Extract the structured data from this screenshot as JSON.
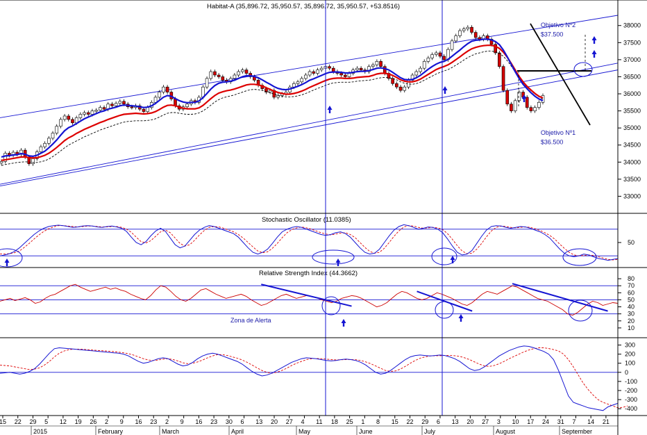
{
  "chart_data": {
    "type": "stock-chart",
    "title": "Habitat-A (35,896.72, 35,950.57, 35,896.72, 35,950.57, +53.8516)",
    "colors": {
      "price_up": "#ffffff",
      "price_down": "#d40000",
      "ma_fast": "#1414d2",
      "ma_slow": "#dd0000",
      "ma_dashed": "#000000",
      "frame": "#000000",
      "guide": "#1414d2",
      "oscillator": "#1414d2",
      "signal": "#dd0000",
      "rsi": "#cc0000"
    },
    "price_panel": {
      "y_ticks": [
        33000,
        33500,
        34000,
        34500,
        35000,
        35500,
        36000,
        36500,
        37000,
        37500,
        38000
      ],
      "ylim": [
        32500,
        38300
      ],
      "x_range": [
        0,
        182
      ],
      "closes": [
        34020,
        34260,
        34200,
        34290,
        34230,
        34350,
        34150,
        33950,
        34100,
        34300,
        34450,
        34550,
        34700,
        34850,
        35050,
        35250,
        35350,
        35250,
        35150,
        35300,
        35400,
        35450,
        35400,
        35500,
        35520,
        35600,
        35550,
        35700,
        35650,
        35720,
        35780,
        35700,
        35620,
        35600,
        35650,
        35550,
        35480,
        35600,
        35750,
        35900,
        36050,
        36200,
        36050,
        35850,
        35650,
        35550,
        35620,
        35700,
        35800,
        35750,
        35900,
        36200,
        36450,
        36650,
        36550,
        36500,
        36400,
        36350,
        36450,
        36550,
        36650,
        36700,
        36600,
        36500,
        36400,
        36250,
        36150,
        36050,
        36100,
        35900,
        35950,
        36000,
        36050,
        36200,
        36300,
        36350,
        36450,
        36550,
        36650,
        36600,
        36700,
        36750,
        36800,
        36750,
        36650,
        36600,
        36550,
        36500,
        36600,
        36700,
        36750,
        36700,
        36650,
        36800,
        36850,
        36950,
        36800,
        36600,
        36450,
        36300,
        36200,
        36100,
        36200,
        36400,
        36550,
        36650,
        36750,
        36950,
        37050,
        37150,
        37200,
        37100,
        37000,
        37300,
        37550,
        37700,
        37850,
        37900,
        37950,
        37800,
        37650,
        37600,
        37700,
        37600,
        37450,
        37200,
        36800,
        36100,
        35700,
        35500,
        35800,
        36050,
        35900,
        35600,
        35500,
        35600,
        35750,
        35950
      ],
      "ma_fast": [
        34150,
        34180,
        34190,
        34210,
        34220,
        34250,
        34230,
        34180,
        34170,
        34200,
        34260,
        34320,
        34420,
        34530,
        34650,
        34790,
        34920,
        35010,
        35060,
        35130,
        35200,
        35270,
        35320,
        35370,
        35420,
        35470,
        35500,
        35550,
        35580,
        35610,
        35650,
        35670,
        35660,
        35650,
        35640,
        35620,
        35600,
        35610,
        35650,
        35720,
        35810,
        35900,
        35950,
        35930,
        35860,
        35800,
        35760,
        35740,
        35750,
        35750,
        35790,
        35890,
        36010,
        36140,
        36240,
        36310,
        36340,
        36350,
        36370,
        36400,
        36450,
        36500,
        36530,
        36530,
        36510,
        36470,
        36410,
        36340,
        36280,
        36210,
        36160,
        36130,
        36120,
        36140,
        36180,
        36220,
        36270,
        36330,
        36400,
        36440,
        36490,
        36540,
        36590,
        36630,
        36640,
        36640,
        36630,
        36610,
        36610,
        36630,
        36650,
        36660,
        36660,
        36680,
        36710,
        36750,
        36760,
        36740,
        36700,
        36630,
        36550,
        36470,
        36420,
        36410,
        36420,
        36470,
        36540,
        36630,
        36720,
        36800,
        36870,
        36920,
        36950,
        37010,
        37100,
        37190,
        37280,
        37380,
        37470,
        37540,
        37570,
        37580,
        37600,
        37600,
        37580,
        37530,
        37440,
        37280,
        37080,
        36860,
        36650,
        36450,
        36280,
        36150,
        36030,
        35930,
        35850,
        35800
      ],
      "ma_slow": [
        34050,
        34070,
        34090,
        34110,
        34130,
        34150,
        34150,
        34130,
        34120,
        34130,
        34160,
        34200,
        34260,
        34340,
        34430,
        34530,
        34630,
        34710,
        34770,
        34840,
        34900,
        34960,
        35010,
        35060,
        35110,
        35160,
        35200,
        35250,
        35290,
        35330,
        35370,
        35400,
        35410,
        35420,
        35430,
        35420,
        35410,
        35420,
        35440,
        35480,
        35540,
        35610,
        35660,
        35670,
        35650,
        35610,
        35580,
        35560,
        35560,
        35560,
        35590,
        35660,
        35760,
        35860,
        35950,
        36020,
        36060,
        36090,
        36110,
        36140,
        36180,
        36220,
        36260,
        36280,
        36280,
        36260,
        36230,
        36180,
        36130,
        36080,
        36040,
        36010,
        35990,
        35990,
        36010,
        36040,
        36080,
        36130,
        36190,
        36240,
        36290,
        36340,
        36390,
        36430,
        36450,
        36460,
        36460,
        36450,
        36450,
        36460,
        36480,
        36490,
        36500,
        36510,
        36540,
        36580,
        36600,
        36600,
        36580,
        36540,
        36480,
        36410,
        36370,
        36350,
        36350,
        36380,
        36430,
        36500,
        36570,
        36640,
        36710,
        36760,
        36800,
        36850,
        36920,
        37000,
        37080,
        37170,
        37250,
        37320,
        37360,
        37390,
        37410,
        37420,
        37420,
        37390,
        37330,
        37220,
        37070,
        36890,
        36700,
        36510,
        36350,
        36220,
        36110,
        36010,
        35930,
        35880
      ],
      "ma_dashed": [
        33900,
        33930,
        33950,
        33970,
        33990,
        34000,
        34010,
        34000,
        33990,
        33990,
        34010,
        34040,
        34090,
        34160,
        34240,
        34330,
        34420,
        34500,
        34560,
        34620,
        34680,
        34740,
        34790,
        34840,
        34890,
        34940,
        34980,
        35020,
        35060,
        35100,
        35140,
        35170,
        35190,
        35200,
        35210,
        35210,
        35210,
        35220,
        35240,
        35270,
        35320,
        35380,
        35430,
        35450,
        35450,
        35430,
        35410,
        35400,
        35400,
        35410,
        35440,
        35500,
        35580,
        35670,
        35760,
        35830,
        35880,
        35910,
        35940,
        35970,
        36010,
        36050,
        36090,
        36120,
        36130,
        36120,
        36100,
        36070,
        36030,
        35990,
        35960,
        35930,
        35910,
        35910,
        35920,
        35940,
        35970,
        36010,
        36060,
        36110,
        36160,
        36200,
        36250,
        36290,
        36320,
        36330,
        36340,
        36340,
        36340,
        36350,
        36370,
        36380,
        36390,
        36400,
        36420,
        36450,
        36470,
        36480,
        36470,
        36450,
        36410,
        36350,
        36310,
        36290,
        36280,
        36300,
        36340,
        36400,
        36460,
        36520,
        36580,
        36630,
        36670,
        36710,
        36770,
        36840,
        36910,
        36990,
        37060,
        37120,
        37170,
        37200,
        37230,
        37250,
        37250,
        37230,
        37180,
        37100,
        36970,
        36810,
        36640,
        36470,
        36320,
        36200,
        36090,
        35990,
        35910,
        35850
      ],
      "channel_upper": [
        [
          0,
          35300
        ],
        [
          182,
          38300
        ]
      ],
      "channel_mid": [
        [
          0,
          33350
        ],
        [
          182,
          36900
        ]
      ],
      "channel_lower": [
        [
          0,
          33300
        ],
        [
          182,
          36700
        ]
      ],
      "annotations": [
        {
          "text": "Objetivo Nº2",
          "x": 174,
          "y": 37950
        },
        {
          "text": "$37.500",
          "x": 174,
          "y": 37680
        },
        {
          "text": "Objetivo Nº1",
          "x": 174,
          "y": 34800
        },
        {
          "text": "$36.500",
          "x": 174,
          "y": 34530
        }
      ]
    },
    "stochastic": {
      "title": "Stochastic Oscillator (11.0385)",
      "y_ticks": [
        50
      ],
      "ylim": [
        0,
        100
      ],
      "k": [
        20,
        22,
        25,
        30,
        38,
        48,
        58,
        68,
        76,
        82,
        86,
        88,
        89,
        88,
        86,
        84,
        85,
        87,
        88,
        87,
        85,
        84,
        86,
        87,
        85,
        82,
        75,
        62,
        50,
        45,
        52,
        65,
        76,
        82,
        75,
        60,
        45,
        38,
        42,
        55,
        68,
        78,
        84,
        88,
        86,
        82,
        78,
        74,
        70,
        62,
        50,
        38,
        28,
        24,
        28,
        35,
        48,
        62,
        74,
        80,
        84,
        86,
        84,
        80,
        76,
        72,
        68,
        66,
        68,
        72,
        74,
        70,
        62,
        50,
        38,
        28,
        24,
        26,
        35,
        50,
        65,
        78,
        86,
        90,
        88,
        84,
        80,
        82,
        85,
        84,
        80,
        72,
        58,
        42,
        28,
        22,
        24,
        32,
        48,
        64,
        78,
        86,
        88,
        87,
        84,
        82,
        84,
        86,
        85,
        82,
        78,
        74,
        68,
        60,
        48,
        36,
        26,
        20,
        18,
        20,
        24,
        22,
        18,
        14,
        12,
        10,
        12,
        14
      ],
      "d": [
        24,
        24,
        25,
        27,
        31,
        39,
        48,
        58,
        67,
        75,
        81,
        85,
        88,
        88,
        87,
        86,
        85,
        86,
        87,
        87,
        86,
        85,
        85,
        86,
        86,
        84,
        80,
        73,
        62,
        52,
        49,
        54,
        64,
        74,
        78,
        72,
        60,
        48,
        42,
        45,
        55,
        67,
        77,
        84,
        86,
        85,
        82,
        78,
        74,
        68,
        60,
        50,
        40,
        31,
        27,
        29,
        37,
        48,
        61,
        72,
        79,
        83,
        85,
        83,
        80,
        76,
        72,
        69,
        67,
        69,
        71,
        72,
        68,
        61,
        50,
        39,
        30,
        26,
        28,
        37,
        50,
        64,
        76,
        85,
        88,
        87,
        84,
        82,
        83,
        84,
        83,
        79,
        70,
        57,
        43,
        31,
        25,
        26,
        35,
        48,
        63,
        76,
        84,
        87,
        86,
        84,
        83,
        84,
        85,
        84,
        81,
        77,
        72,
        66,
        58,
        47,
        37,
        28,
        22,
        20,
        21,
        22,
        21,
        18,
        15,
        12,
        11,
        12
      ],
      "levels": [
        80,
        20
      ]
    },
    "rsi": {
      "title": "Relative Strength Index (44.3662)",
      "y_ticks": [
        80,
        70,
        60,
        50,
        40,
        30,
        20,
        10
      ],
      "ylim": [
        0,
        90
      ],
      "values": [
        48,
        50,
        52,
        49,
        51,
        53,
        50,
        45,
        47,
        52,
        56,
        58,
        62,
        66,
        70,
        72,
        68,
        65,
        62,
        64,
        66,
        68,
        65,
        67,
        64,
        62,
        58,
        55,
        52,
        50,
        56,
        64,
        70,
        68,
        62,
        55,
        50,
        48,
        52,
        58,
        64,
        66,
        62,
        58,
        55,
        52,
        54,
        56,
        58,
        55,
        50,
        46,
        42,
        44,
        48,
        52,
        56,
        58,
        55,
        52,
        54,
        56,
        55,
        53,
        50,
        48,
        46,
        48,
        52,
        54,
        56,
        55,
        52,
        48,
        44,
        40,
        42,
        46,
        52,
        58,
        62,
        60,
        56,
        52,
        50,
        52,
        56,
        60,
        58,
        55,
        52,
        48,
        44,
        42,
        46,
        52,
        58,
        62,
        60,
        58,
        62,
        66,
        70,
        68,
        64,
        60,
        56,
        52,
        50,
        48,
        44,
        40,
        36,
        30,
        28,
        32,
        38,
        44,
        48,
        46,
        42,
        44,
        46,
        45
      ],
      "levels": [
        70,
        50,
        30
      ],
      "trendlines": [
        [
          [
            52,
            72
          ],
          [
            70,
            41
          ]
        ],
        [
          [
            83,
            62
          ],
          [
            94,
            34
          ]
        ],
        [
          [
            102,
            73
          ],
          [
            121,
            34
          ]
        ]
      ],
      "annotation": "Zona de Alerta"
    },
    "macd": {
      "y_ticks": [
        300,
        200,
        100,
        0,
        -100,
        -200,
        -300,
        -400
      ],
      "ylim": [
        -460,
        350
      ],
      "main": [
        -10,
        -5,
        0,
        -10,
        -20,
        -10,
        10,
        40,
        90,
        150,
        210,
        260,
        270,
        265,
        260,
        255,
        250,
        245,
        240,
        235,
        230,
        225,
        220,
        215,
        210,
        200,
        180,
        150,
        120,
        100,
        110,
        130,
        150,
        160,
        150,
        120,
        90,
        70,
        80,
        110,
        150,
        180,
        200,
        210,
        200,
        180,
        160,
        140,
        120,
        90,
        50,
        10,
        -20,
        -40,
        -30,
        -10,
        20,
        50,
        80,
        110,
        130,
        150,
        160,
        155,
        150,
        140,
        130,
        125,
        130,
        140,
        145,
        140,
        130,
        110,
        80,
        40,
        0,
        -20,
        -10,
        20,
        60,
        100,
        140,
        170,
        185,
        190,
        185,
        180,
        185,
        190,
        185,
        170,
        150,
        120,
        80,
        40,
        20,
        30,
        60,
        100,
        140,
        180,
        210,
        240,
        260,
        280,
        290,
        285,
        270,
        250,
        230,
        200,
        140,
        20,
        -120,
        -260,
        -330,
        -350,
        -370,
        -390,
        -400,
        -410,
        -420,
        -380,
        -360,
        -340
      ],
      "signal": [
        80,
        75,
        70,
        60,
        50,
        40,
        30,
        35,
        50,
        80,
        120,
        170,
        210,
        235,
        250,
        255,
        255,
        252,
        248,
        244,
        240,
        236,
        232,
        228,
        222,
        215,
        205,
        190,
        170,
        150,
        135,
        130,
        135,
        145,
        150,
        140,
        125,
        105,
        95,
        100,
        115,
        135,
        160,
        180,
        195,
        195,
        185,
        170,
        155,
        135,
        110,
        80,
        50,
        20,
        0,
        -10,
        0,
        20,
        45,
        75,
        100,
        120,
        140,
        150,
        152,
        150,
        145,
        140,
        137,
        138,
        140,
        141,
        138,
        130,
        115,
        95,
        70,
        45,
        20,
        10,
        15,
        35,
        65,
        100,
        130,
        155,
        170,
        180,
        182,
        183,
        185,
        186,
        183,
        175,
        160,
        140,
        115,
        90,
        70,
        65,
        75,
        95,
        120,
        150,
        175,
        200,
        225,
        245,
        260,
        270,
        270,
        262,
        250,
        235,
        200,
        140,
        60,
        -30,
        -120,
        -190,
        -250,
        -300,
        -330,
        -350,
        -370,
        -390,
        -385,
        -370
      ],
      "levels": [
        0
      ]
    },
    "x_axis": {
      "day_ticks": [
        "15",
        "22",
        "29",
        "5",
        "12",
        "19",
        "26",
        "2",
        "9",
        "16",
        "23",
        "2",
        "9",
        "16",
        "23",
        "30",
        "6",
        "13",
        "20",
        "27",
        "4",
        "11",
        "18",
        "25",
        "1",
        "8",
        "15",
        "22",
        "29",
        "6",
        "13",
        "20",
        "27",
        "3",
        "10",
        "17",
        "24",
        "31",
        "7",
        "14",
        "21"
      ],
      "months": [
        "2015",
        "February",
        "March",
        "April",
        "May",
        "June",
        "July",
        "August",
        "September"
      ]
    }
  }
}
